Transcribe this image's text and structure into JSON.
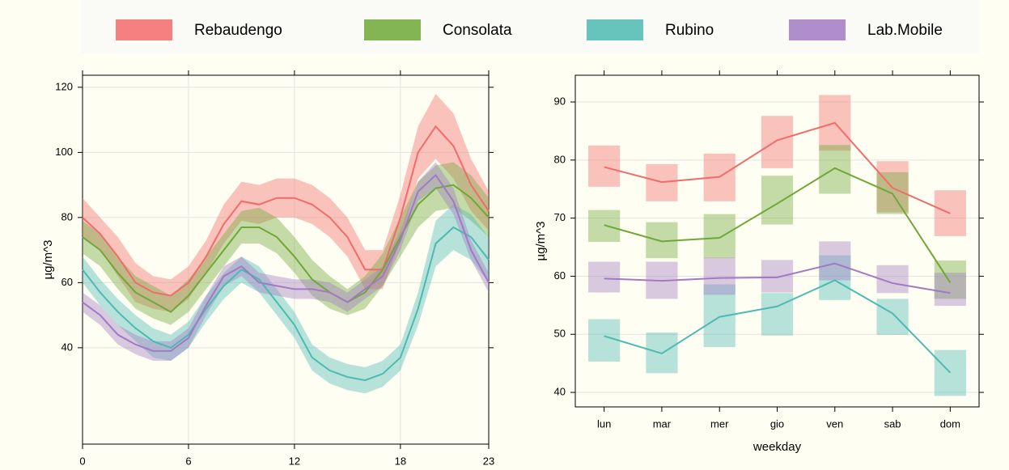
{
  "chart_data": [
    {
      "type": "line",
      "interval": "ribbon",
      "xlabel": "hour",
      "ylabel": "µg/m^3",
      "x": [
        0,
        1,
        2,
        3,
        4,
        5,
        6,
        7,
        8,
        9,
        10,
        11,
        12,
        13,
        14,
        15,
        16,
        17,
        18,
        19,
        20,
        21,
        22,
        23
      ],
      "xlim": [
        0,
        23
      ],
      "xticks": [
        0,
        6,
        12,
        18,
        23
      ],
      "ylim": [
        10.4,
        123.7
      ],
      "yticks": [
        40,
        60,
        80,
        100,
        120
      ],
      "grid": true,
      "series": [
        {
          "name": "Rebaudengo",
          "color": "#f26b6b",
          "values": [
            80,
            75,
            68,
            60,
            57,
            56,
            60,
            68,
            78,
            85,
            84,
            86,
            86,
            84,
            80,
            74,
            64,
            64,
            80,
            100,
            108,
            102,
            90,
            82
          ],
          "lower": [
            74,
            70,
            62,
            54,
            52,
            51,
            55,
            63,
            72,
            79,
            78,
            80,
            80,
            78,
            74,
            68,
            58,
            58,
            73,
            92,
            98,
            92,
            82,
            76
          ],
          "upper": [
            86,
            80,
            74,
            66,
            62,
            61,
            65,
            73,
            84,
            91,
            90,
            92,
            92,
            90,
            86,
            80,
            70,
            70,
            87,
            108,
            118,
            112,
            98,
            88
          ]
        },
        {
          "name": "Consolata",
          "color": "#6fa836",
          "values": [
            74,
            70,
            63,
            57,
            54,
            51,
            56,
            63,
            70,
            77,
            77,
            74,
            68,
            61,
            57,
            54,
            57,
            64,
            74,
            84,
            89,
            90,
            86,
            80
          ],
          "lower": [
            69,
            65,
            58,
            52,
            49,
            47,
            51,
            58,
            65,
            72,
            72,
            69,
            63,
            56,
            52,
            50,
            52,
            59,
            68,
            77,
            82,
            83,
            79,
            74
          ],
          "upper": [
            79,
            75,
            68,
            62,
            59,
            56,
            61,
            68,
            75,
            82,
            83,
            80,
            74,
            67,
            62,
            58,
            62,
            69,
            80,
            91,
            96,
            97,
            93,
            86
          ]
        },
        {
          "name": "Rubino",
          "color": "#4cbab3",
          "values": [
            64,
            57,
            51,
            46,
            42,
            40,
            44,
            52,
            59,
            64,
            61,
            54,
            47,
            37,
            33,
            31,
            30,
            32,
            37,
            52,
            72,
            77,
            74,
            67
          ],
          "lower": [
            60,
            53,
            47,
            42,
            37,
            36,
            40,
            48,
            55,
            60,
            57,
            50,
            43,
            33,
            29,
            27,
            26,
            28,
            33,
            47,
            65,
            70,
            67,
            60
          ],
          "upper": [
            68,
            61,
            55,
            50,
            46,
            44,
            48,
            56,
            63,
            68,
            65,
            58,
            51,
            41,
            37,
            35,
            34,
            36,
            41,
            57,
            79,
            84,
            81,
            74
          ]
        },
        {
          "name": "Lab.Mobile",
          "color": "#a27ac4",
          "values": [
            54,
            50,
            44,
            41,
            39,
            39,
            43,
            53,
            62,
            65,
            60,
            59,
            58,
            58,
            57,
            54,
            58,
            62,
            73,
            88,
            93,
            85,
            70,
            60
          ],
          "lower": [
            51,
            47,
            41,
            38,
            36,
            36,
            40,
            50,
            59,
            62,
            57,
            56,
            55,
            55,
            54,
            51,
            55,
            59,
            70,
            85,
            89,
            81,
            67,
            57
          ],
          "upper": [
            57,
            53,
            47,
            44,
            42,
            42,
            46,
            56,
            65,
            68,
            63,
            62,
            61,
            61,
            60,
            57,
            61,
            65,
            76,
            91,
            97,
            89,
            73,
            63
          ]
        }
      ]
    },
    {
      "type": "line",
      "interval": "box",
      "xlabel": "weekday",
      "ylabel": "µg/m^3",
      "categories": [
        "lun",
        "mar",
        "mer",
        "gio",
        "ven",
        "sab",
        "dom"
      ],
      "ylim": [
        37.5,
        94.6
      ],
      "yticks": [
        40,
        50,
        60,
        70,
        80,
        90
      ],
      "grid": true,
      "series": [
        {
          "name": "Rebaudengo",
          "color": "#f26b6b",
          "values": [
            78.8,
            76.2,
            77.1,
            83.4,
            86.4,
            75.2,
            70.8
          ],
          "lower": [
            75.4,
            72.9,
            72.9,
            78.6,
            81.6,
            71.0,
            66.9
          ],
          "upper": [
            82.5,
            79.3,
            81.1,
            87.6,
            91.2,
            79.8,
            74.8
          ]
        },
        {
          "name": "Consolata",
          "color": "#6fa836",
          "values": [
            68.8,
            66.0,
            66.6,
            72.5,
            78.6,
            74.2,
            58.9
          ],
          "lower": [
            65.9,
            63.1,
            63.1,
            68.9,
            74.2,
            70.7,
            56.1
          ],
          "upper": [
            71.4,
            69.3,
            70.7,
            77.3,
            82.6,
            77.9,
            62.7
          ]
        },
        {
          "name": "Rubino",
          "color": "#4cbab3",
          "values": [
            49.7,
            46.7,
            53.0,
            54.8,
            59.3,
            53.6,
            43.4
          ],
          "lower": [
            45.3,
            43.3,
            47.8,
            49.8,
            55.9,
            49.9,
            39.4
          ],
          "upper": [
            52.6,
            50.3,
            58.6,
            57.1,
            63.6,
            56.1,
            47.3
          ]
        },
        {
          "name": "Lab.Mobile",
          "color": "#a27ac4",
          "values": [
            59.6,
            59.2,
            59.7,
            59.8,
            62.2,
            58.8,
            57.1
          ],
          "lower": [
            57.2,
            56.1,
            56.8,
            57.2,
            59.3,
            57.1,
            54.9
          ],
          "upper": [
            62.5,
            62.5,
            63.2,
            62.8,
            66.0,
            61.9,
            60.6
          ]
        }
      ]
    }
  ]
}
